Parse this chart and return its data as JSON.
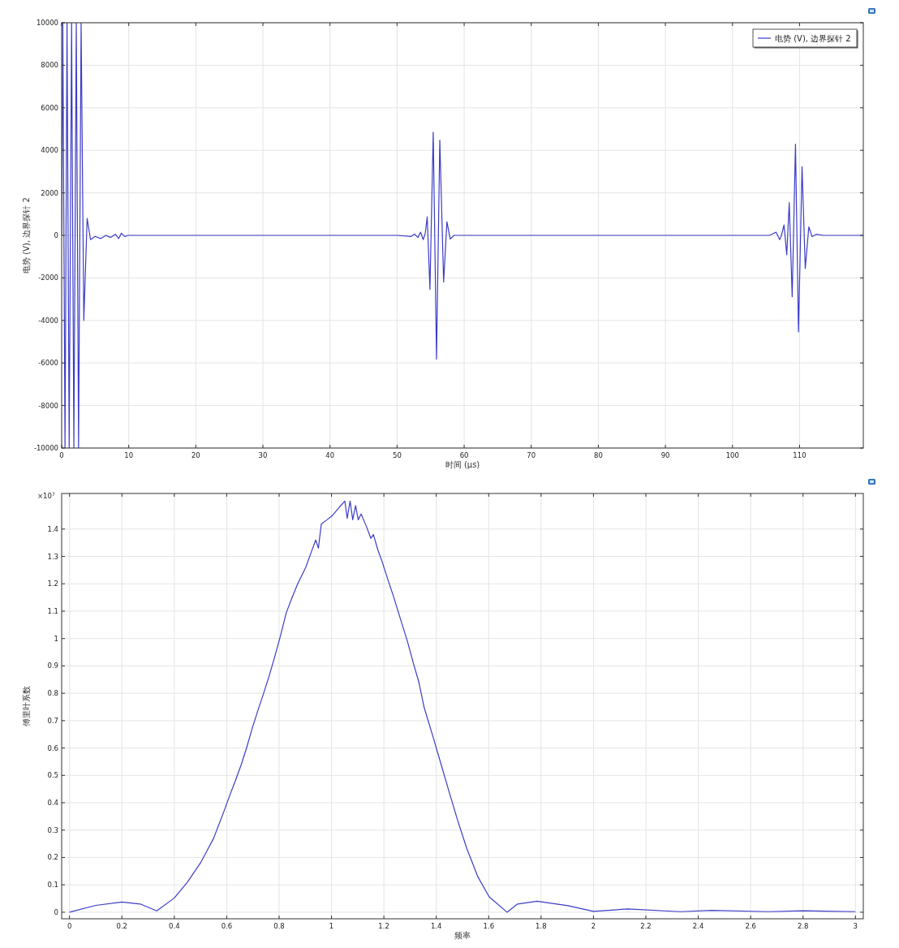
{
  "chart_data": [
    {
      "type": "line",
      "xlabel": "时间 (µs)",
      "ylabel": "电势 (V), 边界探针 2",
      "xlim": [
        0,
        119.5
      ],
      "ylim": [
        -10000,
        10000
      ],
      "xticks": [
        0,
        10,
        20,
        30,
        40,
        50,
        60,
        70,
        80,
        90,
        100,
        110
      ],
      "yticks": [
        -10000,
        -8000,
        -6000,
        -4000,
        -2000,
        0,
        2000,
        4000,
        6000,
        8000,
        10000
      ],
      "grid": true,
      "legend": "top right",
      "series": [
        {
          "name": "电势 (V), 边界探针 2",
          "color": "#3c3cc8",
          "x": [
            0,
            0.17,
            0.5,
            0.8,
            1.12,
            1.48,
            1.82,
            2.18,
            2.52,
            2.9,
            3.3,
            3.8,
            4.3,
            5,
            5.8,
            6.6,
            7.3,
            8,
            8.5,
            8.9,
            9.4,
            9.9,
            10.5,
            20,
            30,
            40,
            50,
            52.1,
            52.6,
            53.1,
            53.5,
            53.9,
            54.2,
            54.49,
            54.9,
            55.39,
            55.88,
            56.37,
            56.94,
            57.43,
            57.92,
            58.5,
            60,
            70,
            80,
            90,
            100,
            105.5,
            106.5,
            107.03,
            107.3,
            107.68,
            108.09,
            108.46,
            108.9,
            109.39,
            109.84,
            110.37,
            110.85,
            111.38,
            111.87,
            112.5,
            113.5,
            119.5
          ],
          "values": [
            0,
            10000,
            -10000,
            10000,
            -10000,
            10000,
            -10000,
            10000,
            -10000,
            10000,
            -4000,
            800,
            -200,
            -50,
            -150,
            0,
            -100,
            50,
            -150,
            100,
            -50,
            0,
            0,
            0,
            0,
            0,
            0,
            -50,
            60,
            -100,
            150,
            -200,
            100,
            870,
            -2540,
            4850,
            -5820,
            4480,
            -2190,
            640,
            -170,
            0,
            0,
            0,
            0,
            0,
            0,
            0,
            150,
            -200,
            0,
            490,
            -910,
            1540,
            -2890,
            4290,
            -4540,
            3230,
            -1550,
            400,
            -60,
            50,
            0,
            0
          ]
        }
      ]
    },
    {
      "type": "line",
      "xlabel": "频率",
      "ylabel": "傅里叶系数",
      "annotations": [
        "×10$^{7}$"
      ],
      "xlim": [
        -0.03,
        3.03
      ],
      "ylim": [
        -0.024,
        1.53
      ],
      "xticks": [
        0,
        0.2,
        0.4,
        0.6,
        0.8,
        1,
        1.2,
        1.4,
        1.6,
        1.8,
        2,
        2.2,
        2.4,
        2.6,
        2.8,
        3
      ],
      "yticks": [
        0,
        0.1,
        0.2,
        0.3,
        0.4,
        0.5,
        0.6,
        0.7,
        0.8,
        0.9,
        1,
        1.1,
        1.2,
        1.3,
        1.4
      ],
      "grid": true,
      "legend": false,
      "series": [
        {
          "color": "#3c3cc8",
          "x": [
            0,
            0.1,
            0.2,
            0.27,
            0.333,
            0.4,
            0.45,
            0.5,
            0.55,
            0.59,
            0.612,
            0.633,
            0.655,
            0.676,
            0.698,
            0.719,
            0.741,
            0.762,
            0.784,
            0.805,
            0.827,
            0.848,
            0.87,
            0.902,
            0.924,
            0.94,
            0.95,
            0.961,
            0.983,
            1.004,
            1.031,
            1.051,
            1.06,
            1.071,
            1.081,
            1.092,
            1.102,
            1.113,
            1.134,
            1.15,
            1.16,
            1.177,
            1.193,
            1.214,
            1.236,
            1.263,
            1.29,
            1.311,
            1.333,
            1.354,
            1.387,
            1.419,
            1.451,
            1.484,
            1.516,
            1.559,
            1.602,
            1.67,
            1.71,
            1.785,
            1.903,
            2,
            2.13,
            2.333,
            2.45,
            2.667,
            2.8,
            3
          ],
          "values": [
            0,
            0.025,
            0.037,
            0.03,
            0.005,
            0.052,
            0.11,
            0.18,
            0.27,
            0.37,
            0.428,
            0.48,
            0.538,
            0.601,
            0.674,
            0.737,
            0.8,
            0.863,
            0.936,
            1.009,
            1.093,
            1.146,
            1.198,
            1.261,
            1.319,
            1.36,
            1.33,
            1.418,
            1.434,
            1.45,
            1.481,
            1.502,
            1.439,
            1.502,
            1.434,
            1.486,
            1.434,
            1.455,
            1.408,
            1.366,
            1.38,
            1.324,
            1.282,
            1.219,
            1.156,
            1.072,
            0.989,
            0.915,
            0.842,
            0.747,
            0.643,
            0.538,
            0.433,
            0.328,
            0.234,
            0.129,
            0.056,
            0.0,
            0.03,
            0.04,
            0.024,
            0.003,
            0.012,
            0.002,
            0.007,
            0.002,
            0.005,
            0.002
          ]
        }
      ]
    }
  ]
}
